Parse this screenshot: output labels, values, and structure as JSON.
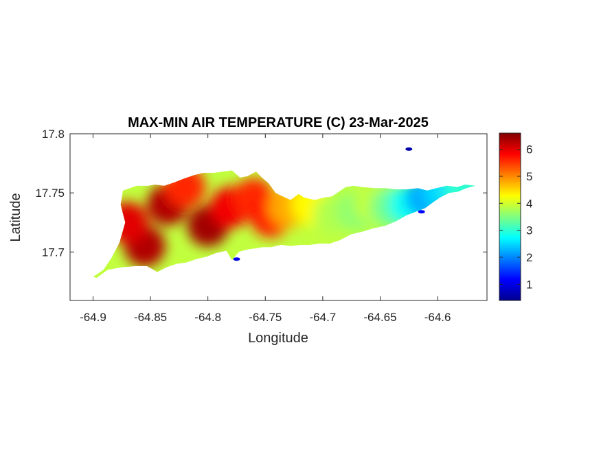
{
  "chart_data": {
    "type": "heatmap",
    "title": "MAX-MIN AIR TEMPERATURE (C) 23-Mar-2025",
    "xlabel": "Longitude",
    "ylabel": "Latitude",
    "xlim": [
      -64.92,
      -64.557
    ],
    "ylim": [
      17.659,
      17.8
    ],
    "x_ticks": [
      -64.9,
      -64.85,
      -64.8,
      -64.75,
      -64.7,
      -64.65,
      -64.6
    ],
    "x_tick_labels": [
      "-64.9",
      "-64.85",
      "-64.8",
      "-64.75",
      "-64.7",
      "-64.65",
      "-64.6"
    ],
    "y_ticks": [
      17.7,
      17.75,
      17.8
    ],
    "y_tick_labels": [
      "17.7",
      "17.75",
      "17.8"
    ],
    "colormap": "jet",
    "colorbar": {
      "range": [
        0.4,
        6.6
      ],
      "ticks": [
        1,
        2,
        3,
        4,
        5,
        6
      ],
      "tick_labels": [
        "1",
        "2",
        "3",
        "4",
        "5",
        "6"
      ],
      "placement": "right"
    },
    "grid": false,
    "island_outline": [
      [
        -64.9,
        17.679
      ],
      [
        -64.891,
        17.685
      ],
      [
        -64.884,
        17.695
      ],
      [
        -64.877,
        17.708
      ],
      [
        -64.872,
        17.725
      ],
      [
        -64.876,
        17.74
      ],
      [
        -64.874,
        17.752
      ],
      [
        -64.868,
        17.754
      ],
      [
        -64.862,
        17.756
      ],
      [
        -64.852,
        17.756
      ],
      [
        -64.846,
        17.757
      ],
      [
        -64.838,
        17.756
      ],
      [
        -64.829,
        17.759
      ],
      [
        -64.821,
        17.762
      ],
      [
        -64.812,
        17.765
      ],
      [
        -64.804,
        17.767
      ],
      [
        -64.795,
        17.767
      ],
      [
        -64.787,
        17.768
      ],
      [
        -64.779,
        17.769
      ],
      [
        -64.772,
        17.763
      ],
      [
        -64.766,
        17.764
      ],
      [
        -64.758,
        17.768
      ],
      [
        -64.753,
        17.763
      ],
      [
        -64.747,
        17.758
      ],
      [
        -64.741,
        17.75
      ],
      [
        -64.735,
        17.747
      ],
      [
        -64.728,
        17.744
      ],
      [
        -64.721,
        17.749
      ],
      [
        -64.716,
        17.746
      ],
      [
        -64.707,
        17.744
      ],
      [
        -64.699,
        17.746
      ],
      [
        -64.692,
        17.747
      ],
      [
        -64.686,
        17.751
      ],
      [
        -64.68,
        17.755
      ],
      [
        -64.673,
        17.756
      ],
      [
        -64.666,
        17.755
      ],
      [
        -64.655,
        17.754
      ],
      [
        -64.645,
        17.754
      ],
      [
        -64.636,
        17.753
      ],
      [
        -64.627,
        17.753
      ],
      [
        -64.617,
        17.754
      ],
      [
        -64.609,
        17.752
      ],
      [
        -64.601,
        17.754
      ],
      [
        -64.592,
        17.756
      ],
      [
        -64.583,
        17.755
      ],
      [
        -64.576,
        17.757
      ],
      [
        -64.567,
        17.756
      ],
      [
        -64.575,
        17.754
      ],
      [
        -64.582,
        17.751
      ],
      [
        -64.59,
        17.75
      ],
      [
        -64.598,
        17.746
      ],
      [
        -64.604,
        17.742
      ],
      [
        -64.611,
        17.737
      ],
      [
        -64.619,
        17.734
      ],
      [
        -64.627,
        17.731
      ],
      [
        -64.636,
        17.726
      ],
      [
        -64.646,
        17.722
      ],
      [
        -64.656,
        17.72
      ],
      [
        -64.666,
        17.717
      ],
      [
        -64.675,
        17.715
      ],
      [
        -64.685,
        17.71
      ],
      [
        -64.694,
        17.707
      ],
      [
        -64.703,
        17.707
      ],
      [
        -64.711,
        17.706
      ],
      [
        -64.719,
        17.706
      ],
      [
        -64.728,
        17.705
      ],
      [
        -64.736,
        17.706
      ],
      [
        -64.745,
        17.704
      ],
      [
        -64.752,
        17.704
      ],
      [
        -64.759,
        17.703
      ],
      [
        -64.766,
        17.702
      ],
      [
        -64.773,
        17.7
      ],
      [
        -64.779,
        17.693
      ],
      [
        -64.784,
        17.701
      ],
      [
        -64.793,
        17.699
      ],
      [
        -64.801,
        17.696
      ],
      [
        -64.81,
        17.694
      ],
      [
        -64.819,
        17.691
      ],
      [
        -64.827,
        17.69
      ],
      [
        -64.836,
        17.687
      ],
      [
        -64.844,
        17.683
      ],
      [
        -64.853,
        17.688
      ],
      [
        -64.863,
        17.688
      ],
      [
        -64.875,
        17.687
      ],
      [
        -64.887,
        17.685
      ],
      [
        -64.897,
        17.678
      ]
    ],
    "hot_spots": [
      {
        "lon": -64.8,
        "lat": 17.722,
        "value": 6.4
      },
      {
        "lon": -64.835,
        "lat": 17.74,
        "value": 6.3
      },
      {
        "lon": -64.855,
        "lat": 17.705,
        "value": 6.3
      },
      {
        "lon": -64.87,
        "lat": 17.725,
        "value": 6.0
      },
      {
        "lon": -64.78,
        "lat": 17.738,
        "value": 5.9
      },
      {
        "lon": -64.82,
        "lat": 17.755,
        "value": 5.6
      },
      {
        "lon": -64.76,
        "lat": 17.745,
        "value": 5.6
      },
      {
        "lon": -64.745,
        "lat": 17.73,
        "value": 5.7
      },
      {
        "lon": -64.73,
        "lat": 17.738,
        "value": 4.8
      },
      {
        "lon": -64.71,
        "lat": 17.74,
        "value": 4.3
      },
      {
        "lon": -64.69,
        "lat": 17.732,
        "value": 3.8
      },
      {
        "lon": -64.67,
        "lat": 17.735,
        "value": 3.6
      },
      {
        "lon": -64.655,
        "lat": 17.742,
        "value": 3.9
      },
      {
        "lon": -64.64,
        "lat": 17.738,
        "value": 3.4
      },
      {
        "lon": -64.625,
        "lat": 17.74,
        "value": 2.8
      },
      {
        "lon": -64.61,
        "lat": 17.746,
        "value": 2.2
      },
      {
        "lon": -64.595,
        "lat": 17.752,
        "value": 2.5
      },
      {
        "lon": -64.578,
        "lat": 17.755,
        "value": 3.0
      }
    ],
    "cold_spots": [
      {
        "lon": -64.625,
        "lat": 17.787,
        "value": 0.6
      },
      {
        "lon": -64.775,
        "lat": 17.694,
        "value": 1.0
      },
      {
        "lon": -64.614,
        "lat": 17.734,
        "value": 1.2
      }
    ]
  }
}
